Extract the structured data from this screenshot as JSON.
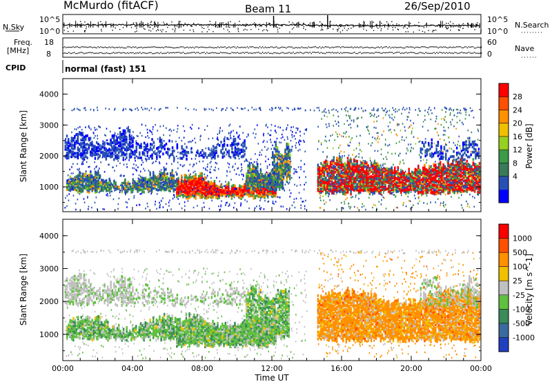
{
  "header": {
    "station": "McMurdo (fitACF)",
    "beam": "Beam 11",
    "date": "26/Sep/2010"
  },
  "strip_labels": {
    "nsky": "N.Sky",
    "nsky_hi": "10^5",
    "nsky_lo": "10^0",
    "nsearch": "N.Search",
    "nsearch_hi": "10^5",
    "nsearch_lo": "10^0",
    "freq": "Freq.",
    "freq_unit": "[MHz]",
    "freq_hi": "18",
    "freq_lo": "8",
    "nave": "Nave",
    "nave_hi": "60",
    "nave_lo": "0",
    "cpid": "CPID",
    "cpid_value": "normal (fast) 151"
  },
  "chart_data": [
    {
      "type": "heatmap",
      "name": "power",
      "ylabel": "Slant Range [km]",
      "ylim": [
        200,
        4500
      ],
      "yticks": [
        1000,
        2000,
        3000,
        4000
      ],
      "xlim": [
        0,
        24
      ],
      "colorbar": {
        "label": "Power [dB]",
        "ticks": [
          "28",
          "24",
          "20",
          "16",
          "12",
          "8",
          "4"
        ],
        "colors": [
          "#0000ff",
          "#2850b4",
          "#3a7a5a",
          "#3c9a48",
          "#98d020",
          "#f0c000",
          "#ff9000",
          "#ff5000",
          "#ff0000"
        ]
      }
    },
    {
      "type": "heatmap",
      "name": "velocity",
      "ylabel": "Slant Range [km]",
      "ylim": [
        200,
        4500
      ],
      "yticks": [
        1000,
        2000,
        3000,
        4000
      ],
      "xlim": [
        0,
        24
      ],
      "xticks": [
        "00:00",
        "04:00",
        "08:00",
        "12:00",
        "16:00",
        "20:00",
        "00:00"
      ],
      "xlabel": "Time UT",
      "colorbar": {
        "label": "Velocity [m s^-1]",
        "ticks": [
          "1000",
          "500",
          "100",
          "25",
          "-25",
          "-100",
          "-500",
          "-1000"
        ],
        "colors": [
          "#2040c0",
          "#3a6aa0",
          "#3a8a5a",
          "#60c040",
          "#c0c0c0",
          "#f0c000",
          "#ff9000",
          "#ff5000",
          "#ff0000"
        ]
      }
    }
  ]
}
